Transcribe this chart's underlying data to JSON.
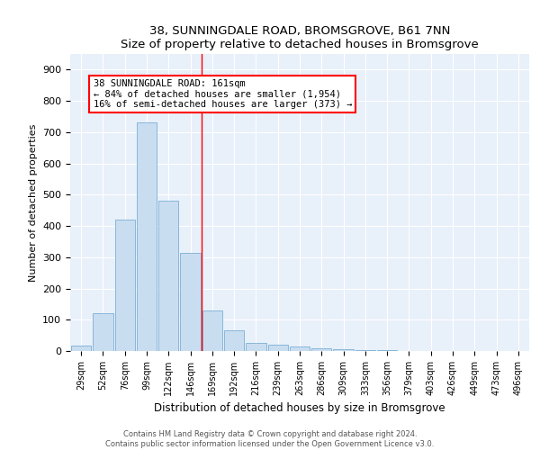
{
  "title": "38, SUNNINGDALE ROAD, BROMSGROVE, B61 7NN",
  "subtitle": "Size of property relative to detached houses in Bromsgrove",
  "xlabel": "Distribution of detached houses by size in Bromsgrove",
  "ylabel": "Number of detached properties",
  "bar_color": "#c9ddf0",
  "bar_edge_color": "#7bafd4",
  "background_color": "#e8f0fa",
  "grid_color": "#ffffff",
  "categories": [
    "29sqm",
    "52sqm",
    "76sqm",
    "99sqm",
    "122sqm",
    "146sqm",
    "169sqm",
    "192sqm",
    "216sqm",
    "239sqm",
    "263sqm",
    "286sqm",
    "309sqm",
    "333sqm",
    "356sqm",
    "379sqm",
    "403sqm",
    "426sqm",
    "449sqm",
    "473sqm",
    "496sqm"
  ],
  "values": [
    18,
    120,
    420,
    730,
    480,
    315,
    130,
    65,
    25,
    20,
    15,
    10,
    5,
    3,
    2,
    1,
    1,
    0,
    0,
    1,
    0
  ],
  "annotation_text_line1": "38 SUNNINGDALE ROAD: 161sqm",
  "annotation_text_line2": "← 84% of detached houses are smaller (1,954)",
  "annotation_text_line3": "16% of semi-detached houses are larger (373) →",
  "ylim": [
    0,
    950
  ],
  "yticks": [
    0,
    100,
    200,
    300,
    400,
    500,
    600,
    700,
    800,
    900
  ],
  "footer_line1": "Contains HM Land Registry data © Crown copyright and database right 2024.",
  "footer_line2": "Contains public sector information licensed under the Open Government Licence v3.0."
}
